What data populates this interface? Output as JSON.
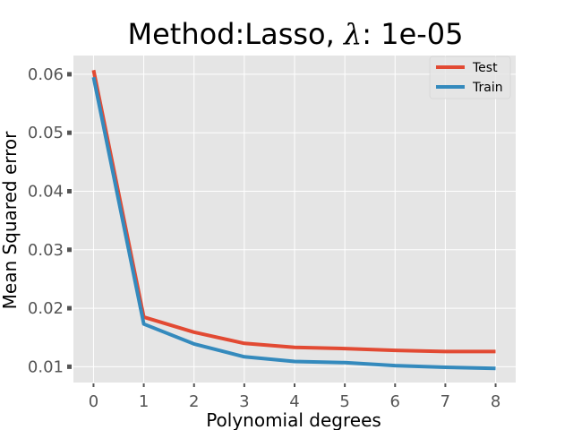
{
  "chart_data": {
    "type": "line",
    "title_prefix": "Method:Lasso, ",
    "title_symbol": "λ",
    "title_suffix": ": 1e-05",
    "xlabel": "Polynomial degrees",
    "ylabel": "Mean Squared error",
    "x": [
      0,
      1,
      2,
      3,
      4,
      5,
      6,
      7,
      8
    ],
    "xlim": [
      -0.4,
      8.4
    ],
    "ylim": [
      0.0073,
      0.0632
    ],
    "xticks": [
      0,
      1,
      2,
      3,
      4,
      5,
      6,
      7,
      8
    ],
    "yticks": [
      0.01,
      0.02,
      0.03,
      0.04,
      0.05,
      0.06
    ],
    "ytick_labels": [
      "0.01",
      "0.02",
      "0.03",
      "0.04",
      "0.05",
      "0.06"
    ],
    "grid": true,
    "legend_position": "top-right",
    "series": [
      {
        "name": "Test",
        "color": "#E24A33",
        "values": [
          0.0607,
          0.0185,
          0.0159,
          0.014,
          0.0133,
          0.0131,
          0.0128,
          0.0126,
          0.0126
        ]
      },
      {
        "name": "Train",
        "color": "#348ABD",
        "values": [
          0.0595,
          0.0173,
          0.0139,
          0.0117,
          0.0109,
          0.0107,
          0.0102,
          0.0099,
          0.0097
        ]
      }
    ]
  }
}
